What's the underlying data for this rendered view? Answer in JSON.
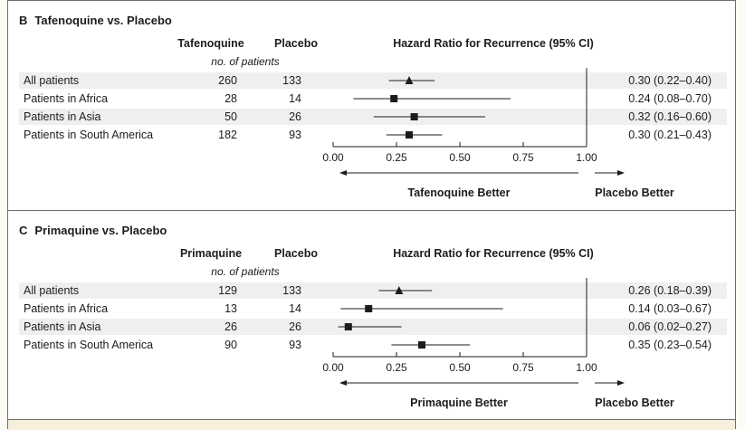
{
  "chart_data": [
    {
      "type": "forest",
      "panel_letter": "B",
      "title": "Tafenoquine vs. Placebo",
      "columns": [
        "Tafenoquine",
        "Placebo"
      ],
      "subheader": "no. of patients",
      "effect_header": "Hazard Ratio for Recurrence (95% CI)",
      "rows": [
        {
          "label": "All patients",
          "n1": "260",
          "n2": "133",
          "hr": 0.3,
          "lo": 0.22,
          "hi": 0.4,
          "text": "0.30 (0.22–0.40)",
          "marker": "triangle"
        },
        {
          "label": "Patients in Africa",
          "n1": "28",
          "n2": "14",
          "hr": 0.24,
          "lo": 0.08,
          "hi": 0.7,
          "text": "0.24 (0.08–0.70)",
          "marker": "square"
        },
        {
          "label": "Patients in Asia",
          "n1": "50",
          "n2": "26",
          "hr": 0.32,
          "lo": 0.16,
          "hi": 0.6,
          "text": "0.32 (0.16–0.60)",
          "marker": "square"
        },
        {
          "label": "Patients in South America",
          "n1": "182",
          "n2": "93",
          "hr": 0.3,
          "lo": 0.21,
          "hi": 0.43,
          "text": "0.30 (0.21–0.43)",
          "marker": "square"
        }
      ],
      "xlim": [
        0,
        1
      ],
      "ticks": [
        "0.00",
        "0.25",
        "0.50",
        "0.75",
        "1.00"
      ],
      "reference_line": 1.0,
      "left_better": "Tafenoquine Better",
      "right_better": "Placebo Better"
    },
    {
      "type": "forest",
      "panel_letter": "C",
      "title": "Primaquine vs. Placebo",
      "columns": [
        "Primaquine",
        "Placebo"
      ],
      "subheader": "no. of patients",
      "effect_header": "Hazard Ratio for Recurrence (95% CI)",
      "rows": [
        {
          "label": "All patients",
          "n1": "129",
          "n2": "133",
          "hr": 0.26,
          "lo": 0.18,
          "hi": 0.39,
          "text": "0.26 (0.18–0.39)",
          "marker": "triangle"
        },
        {
          "label": "Patients in Africa",
          "n1": "13",
          "n2": "14",
          "hr": 0.14,
          "lo": 0.03,
          "hi": 0.67,
          "text": "0.14 (0.03–0.67)",
          "marker": "square"
        },
        {
          "label": "Patients in Asia",
          "n1": "26",
          "n2": "26",
          "hr": 0.06,
          "lo": 0.02,
          "hi": 0.27,
          "text": "0.06 (0.02–0.27)",
          "marker": "square"
        },
        {
          "label": "Patients in South America",
          "n1": "90",
          "n2": "93",
          "hr": 0.35,
          "lo": 0.23,
          "hi": 0.54,
          "text": "0.35 (0.23–0.54)",
          "marker": "square"
        }
      ],
      "xlim": [
        0,
        1
      ],
      "ticks": [
        "0.00",
        "0.25",
        "0.50",
        "0.75",
        "1.00"
      ],
      "reference_line": 1.0,
      "left_better": "Primaquine Better",
      "right_better": "Placebo Better"
    }
  ],
  "colors": {
    "row_shade": "#efefef",
    "background": "#ffffff",
    "bottom_strip": "#f6efdc",
    "ink": "#1c1c1c"
  }
}
